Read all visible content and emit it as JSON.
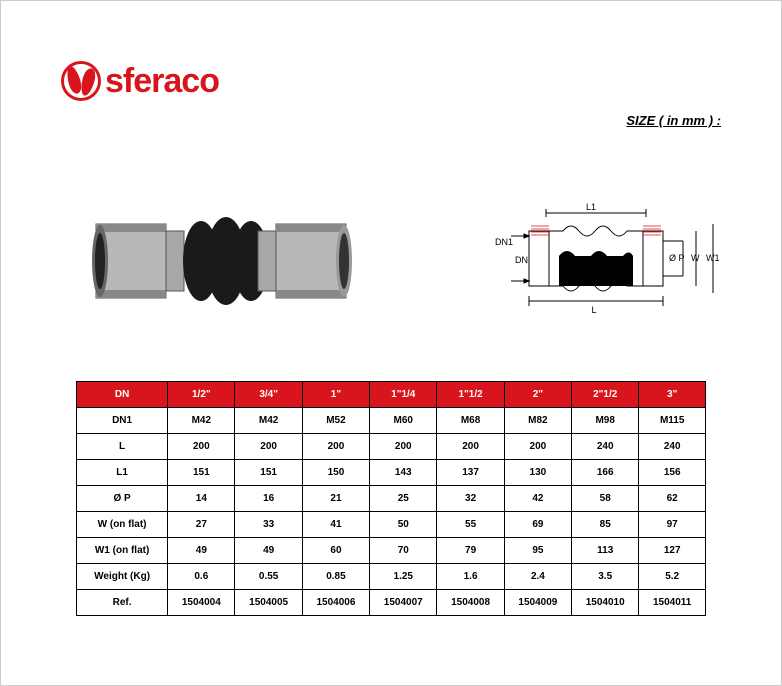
{
  "brand": {
    "name": "sferaco",
    "color": "#d8151c"
  },
  "size_label": "SIZE ( in mm ) :",
  "diagram_labels": {
    "L1": "L1",
    "DN1": "DN1",
    "DN": "DN",
    "OP": "Ø P",
    "W": "W",
    "W1": "W1",
    "L": "L"
  },
  "table": {
    "header_bg": "#d8151c",
    "header": [
      "DN",
      "1/2\"",
      "3/4\"",
      "1\"",
      "1\"1/4",
      "1\"1/2",
      "2\"",
      "2\"1/2",
      "3\""
    ],
    "rows": [
      [
        "DN1",
        "M42",
        "M42",
        "M52",
        "M60",
        "M68",
        "M82",
        "M98",
        "M115"
      ],
      [
        "L",
        "200",
        "200",
        "200",
        "200",
        "200",
        "200",
        "240",
        "240"
      ],
      [
        "L1",
        "151",
        "151",
        "150",
        "143",
        "137",
        "130",
        "166",
        "156"
      ],
      [
        "Ø P",
        "14",
        "16",
        "21",
        "25",
        "32",
        "42",
        "58",
        "62"
      ],
      [
        "W (on flat)",
        "27",
        "33",
        "41",
        "50",
        "55",
        "69",
        "85",
        "97"
      ],
      [
        "W1 (on flat)",
        "49",
        "49",
        "60",
        "70",
        "79",
        "95",
        "113",
        "127"
      ],
      [
        "Weight (Kg)",
        "0.6",
        "0.55",
        "0.85",
        "1.25",
        "1.6",
        "2.4",
        "3.5",
        "5.2"
      ],
      [
        "Ref.",
        "1504004",
        "1504005",
        "1504006",
        "1504007",
        "1504008",
        "1504009",
        "1504010",
        "1504011"
      ]
    ]
  }
}
